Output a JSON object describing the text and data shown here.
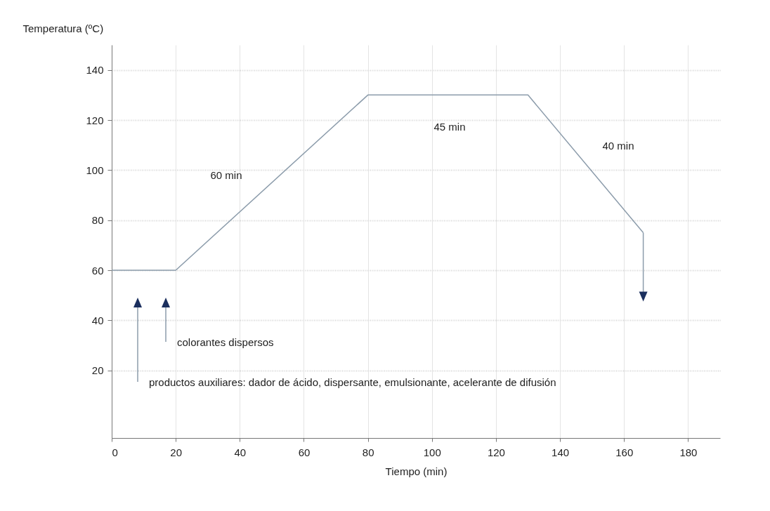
{
  "chart_data": {
    "type": "line",
    "xlabel": "Tiempo (min)",
    "ylabel": "Temperatura (ºC)",
    "x": [
      0,
      20,
      80,
      130,
      166
    ],
    "series": [
      {
        "color": "#8c9cab",
        "values": [
          60,
          60,
          130,
          130,
          75
        ]
      }
    ],
    "xlim": [
      0,
      190
    ],
    "xticks": [
      0,
      20,
      40,
      60,
      80,
      100,
      120,
      140,
      160,
      180
    ],
    "ylim": [
      -7,
      150
    ],
    "yticks": [
      20,
      40,
      60,
      80,
      100,
      120,
      140
    ],
    "grid": true,
    "legend": false,
    "marker": "none",
    "line_style": "solid",
    "annotations": [
      "60 min",
      "45 min",
      "40 min",
      "colorantes dispersos",
      "productos auxiliares: dador de ácido, dispersante, emulsionante, acelerante de difusión"
    ]
  }
}
